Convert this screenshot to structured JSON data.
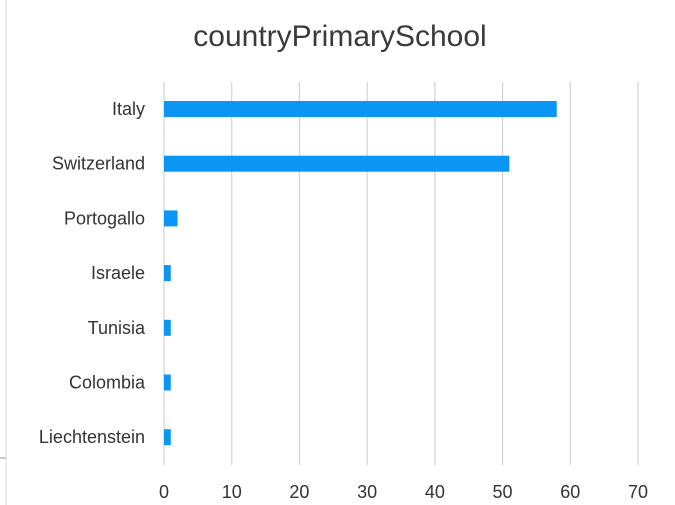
{
  "colors": {
    "bar": "#0a96f2",
    "grid": "#d3d3d3",
    "frame": "#d9d9d9"
  },
  "chart_data": {
    "type": "bar",
    "orientation": "horizontal",
    "title": "countryPrimarySchool",
    "xlabel": "",
    "ylabel": "",
    "categories": [
      "Italy",
      "Switzerland",
      "Portogallo",
      "Israele",
      "Tunisia",
      "Colombia",
      "Liechtenstein"
    ],
    "values": [
      58,
      51,
      2,
      1,
      1,
      1,
      1
    ],
    "xlim": [
      0,
      70
    ],
    "xticks": [
      "0",
      "10",
      "20",
      "30",
      "40",
      "50",
      "60",
      "70"
    ],
    "grid": "vertical",
    "legend": "none"
  }
}
